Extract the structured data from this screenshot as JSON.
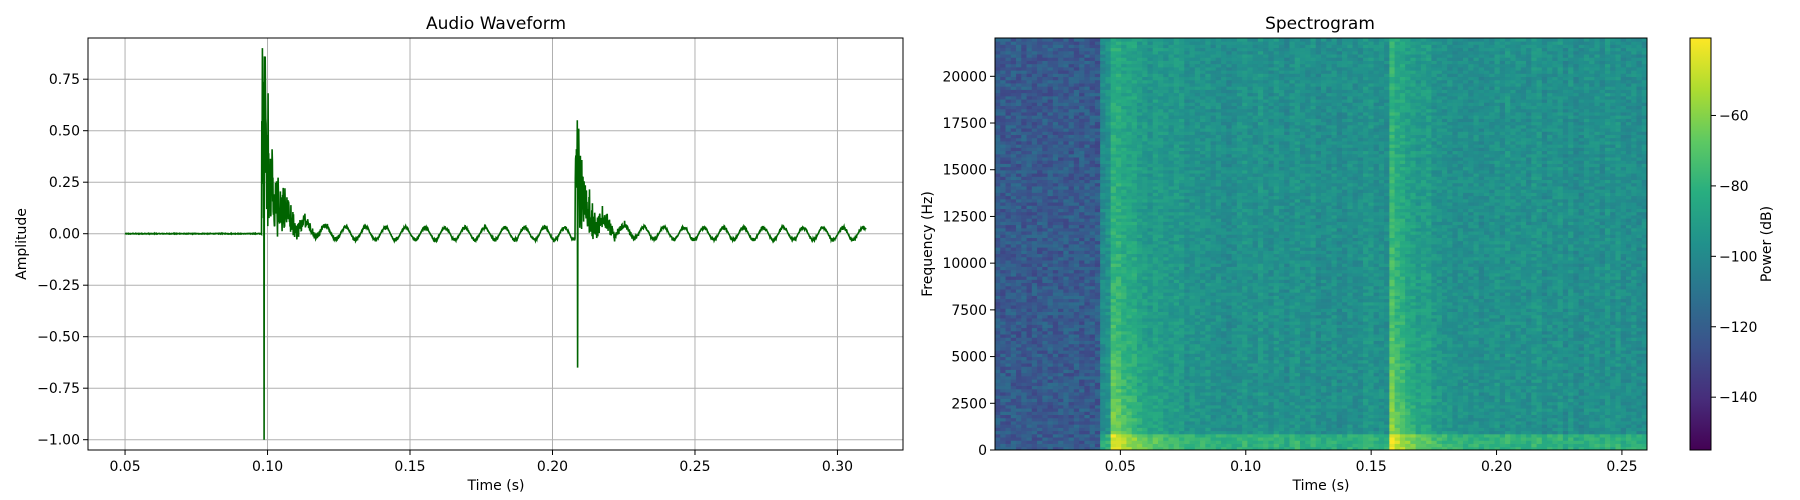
{
  "chart_data": [
    {
      "type": "line",
      "title": "Audio Waveform",
      "xlabel": "Time (s)",
      "ylabel": "Amplitude",
      "xlim": [
        0.037,
        0.323
      ],
      "ylim": [
        -1.05,
        0.95
      ],
      "xticks": [
        0.05,
        0.1,
        0.15,
        0.2,
        0.25,
        0.3
      ],
      "xtick_labels": [
        "0.05",
        "0.10",
        "0.15",
        "0.20",
        "0.25",
        "0.30"
      ],
      "yticks": [
        -1.0,
        -0.75,
        -0.5,
        -0.25,
        0.0,
        0.25,
        0.5,
        0.75
      ],
      "ytick_labels": [
        "−1.00",
        "−0.75",
        "−0.50",
        "−0.25",
        "0.00",
        "0.25",
        "0.50",
        "0.75"
      ],
      "grid": true,
      "color": "#006400",
      "series": [
        {
          "x_range": [
            0.05,
            0.31
          ],
          "events": [
            {
              "onset": 0.098,
              "peak_pos": 0.86,
              "peak_neg": -1.0
            },
            {
              "onset": 0.208,
              "peak_pos": 0.51,
              "peak_neg": -0.65
            }
          ],
          "noise_floor": 0.03
        }
      ]
    },
    {
      "type": "heatmap",
      "title": "Spectrogram",
      "xlabel": "Time (s)",
      "ylabel": "Frequency (Hz)",
      "xlim": [
        0.0,
        0.26
      ],
      "ylim": [
        0,
        22050
      ],
      "xticks": [
        0.05,
        0.1,
        0.15,
        0.2,
        0.25
      ],
      "xtick_labels": [
        "0.05",
        "0.10",
        "0.15",
        "0.20",
        "0.25"
      ],
      "yticks": [
        0,
        2500,
        5000,
        7500,
        10000,
        12500,
        15000,
        17500,
        20000
      ],
      "ytick_labels": [
        "0",
        "2500",
        "5000",
        "7500",
        "10000",
        "12500",
        "15000",
        "17500",
        "20000"
      ],
      "colormap": "viridis",
      "colorbar_label": "Power (dB)",
      "colorbar_range": [
        -155,
        -38
      ],
      "colorbar_ticks": [
        -140,
        -120,
        -100,
        -80,
        -60
      ],
      "colorbar_tick_labels": [
        "−140",
        "−120",
        "−100",
        "−80",
        "−60"
      ],
      "events_time": [
        0.048,
        0.158
      ],
      "quiet_until": 0.041
    }
  ]
}
